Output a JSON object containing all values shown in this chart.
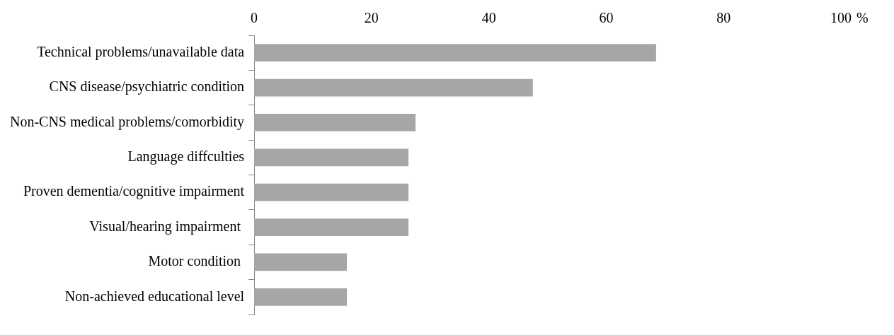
{
  "chart_data": {
    "type": "bar",
    "orientation": "horizontal",
    "xlabel": "%",
    "categories": [
      "Technical problems/unavailable data",
      "CNS disease/psychiatric condition",
      "Non-CNS medical problems/comorbidity",
      "Language diffculties",
      "Proven dementia/cognitive impairment",
      "Visual/hearing impairment ",
      "Motor condition ",
      "Non-achieved educational level"
    ],
    "values": [
      68.5,
      47.5,
      27.5,
      26.3,
      26.3,
      26.3,
      15.8,
      15.8
    ],
    "color": "#a6a6a6",
    "xlim": [
      0,
      100
    ],
    "xticks": [
      0,
      20,
      40,
      60,
      80,
      100
    ]
  }
}
